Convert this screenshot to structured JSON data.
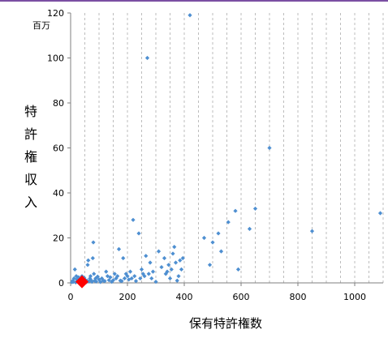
{
  "chart_data": {
    "type": "scatter",
    "xlabel": "保有特許権数",
    "ylabel": "特許権収入",
    "y_unit": "百万",
    "xlim": [
      0,
      1100
    ],
    "ylim": [
      0,
      120
    ],
    "x_ticks": [
      0,
      200,
      400,
      600,
      800,
      1000
    ],
    "y_ticks": [
      0,
      20,
      40,
      60,
      80,
      100,
      120
    ],
    "grid": "vertical dashed",
    "marker_color": "#4e8fd1",
    "highlight_color": "#ff0000",
    "series": [
      {
        "points": [
          [
            5,
            0.3
          ],
          [
            8,
            1
          ],
          [
            10,
            0.5
          ],
          [
            12,
            2
          ],
          [
            15,
            6
          ],
          [
            18,
            0.2
          ],
          [
            20,
            3
          ],
          [
            22,
            1.5
          ],
          [
            25,
            0.8
          ],
          [
            28,
            2.5
          ],
          [
            30,
            0.2
          ],
          [
            32,
            1.2
          ],
          [
            35,
            0.4
          ],
          [
            38,
            2
          ],
          [
            40,
            3
          ],
          [
            42,
            1
          ],
          [
            45,
            0.5
          ],
          [
            48,
            2.2
          ],
          [
            50,
            1.5
          ],
          [
            55,
            0.3
          ],
          [
            58,
            1
          ],
          [
            60,
            8
          ],
          [
            62,
            10
          ],
          [
            65,
            0.7
          ],
          [
            68,
            2
          ],
          [
            70,
            3
          ],
          [
            72,
            1.2
          ],
          [
            75,
            0.5
          ],
          [
            78,
            11
          ],
          [
            80,
            18
          ],
          [
            82,
            4
          ],
          [
            85,
            1
          ],
          [
            88,
            2
          ],
          [
            90,
            0.6
          ],
          [
            95,
            2.8
          ],
          [
            100,
            1.5
          ],
          [
            105,
            0.4
          ],
          [
            110,
            2
          ],
          [
            115,
            1
          ],
          [
            120,
            0.8
          ],
          [
            125,
            5
          ],
          [
            130,
            3
          ],
          [
            135,
            1.2
          ],
          [
            140,
            2.5
          ],
          [
            145,
            0.5
          ],
          [
            150,
            1.2
          ],
          [
            155,
            4
          ],
          [
            160,
            2
          ],
          [
            165,
            3
          ],
          [
            170,
            15
          ],
          [
            175,
            1
          ],
          [
            180,
            0.8
          ],
          [
            185,
            11
          ],
          [
            190,
            2
          ],
          [
            195,
            4
          ],
          [
            200,
            3
          ],
          [
            205,
            1.5
          ],
          [
            210,
            5
          ],
          [
            215,
            2
          ],
          [
            220,
            28
          ],
          [
            225,
            3
          ],
          [
            230,
            0.8
          ],
          [
            240,
            22
          ],
          [
            245,
            2
          ],
          [
            250,
            6
          ],
          [
            255,
            4
          ],
          [
            260,
            3
          ],
          [
            265,
            12
          ],
          [
            270,
            100
          ],
          [
            275,
            4
          ],
          [
            280,
            9
          ],
          [
            285,
            2
          ],
          [
            290,
            5
          ],
          [
            300,
            0.5
          ],
          [
            310,
            14
          ],
          [
            320,
            7
          ],
          [
            330,
            11
          ],
          [
            335,
            4
          ],
          [
            340,
            5
          ],
          [
            345,
            8
          ],
          [
            350,
            2
          ],
          [
            355,
            6
          ],
          [
            360,
            13
          ],
          [
            365,
            16
          ],
          [
            370,
            9
          ],
          [
            375,
            1
          ],
          [
            380,
            3
          ],
          [
            385,
            10
          ],
          [
            390,
            6
          ],
          [
            395,
            11
          ],
          [
            420,
            119
          ],
          [
            470,
            20
          ],
          [
            490,
            8
          ],
          [
            500,
            18
          ],
          [
            520,
            22
          ],
          [
            530,
            14
          ],
          [
            555,
            27
          ],
          [
            580,
            32
          ],
          [
            590,
            6
          ],
          [
            630,
            24
          ],
          [
            650,
            33
          ],
          [
            700,
            60
          ],
          [
            850,
            23
          ],
          [
            1090,
            31
          ]
        ]
      }
    ],
    "highlight_point": [
      40,
      0.5
    ]
  }
}
